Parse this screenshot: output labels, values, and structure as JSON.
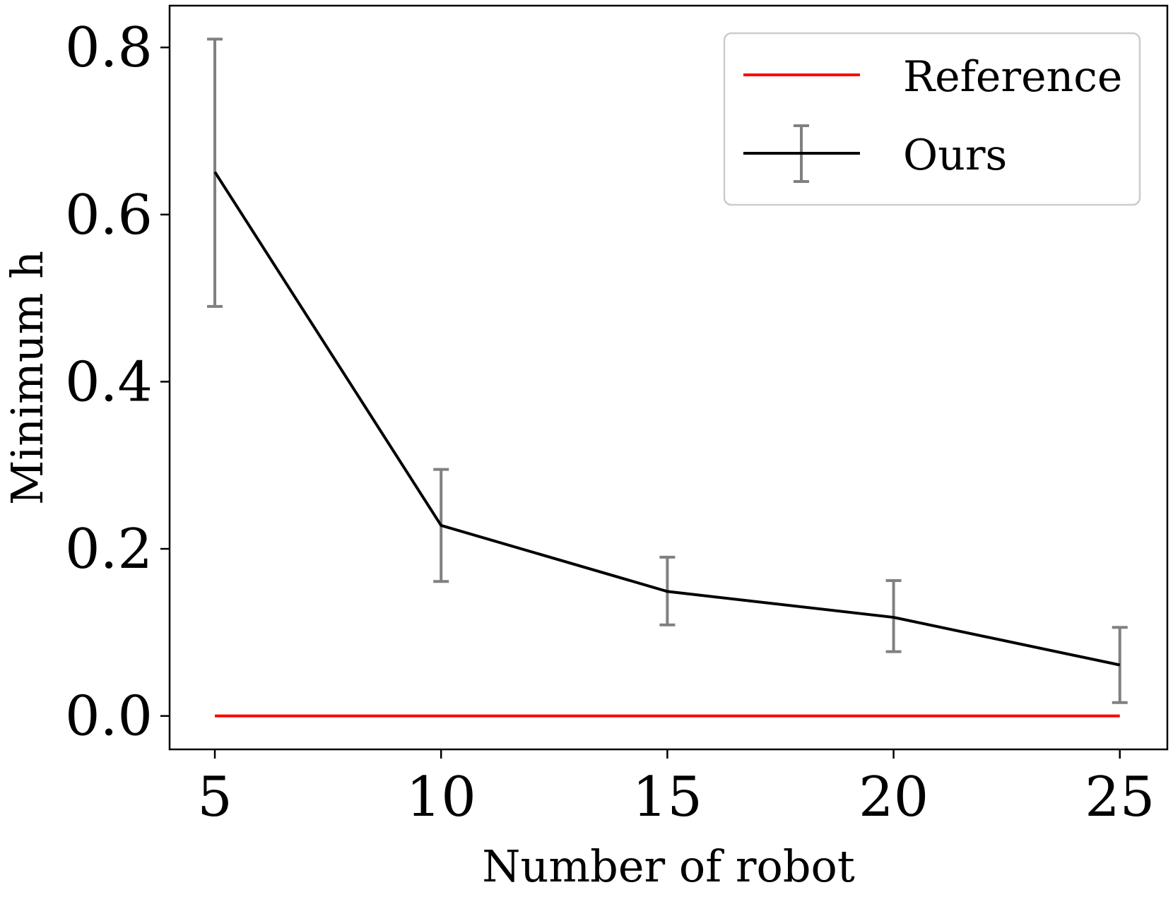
{
  "chart_data": {
    "type": "line",
    "xlabel": "Number of robot",
    "ylabel": "Minimum h",
    "x": [
      5,
      10,
      15,
      20,
      25
    ],
    "x_ticks": [
      "5",
      "10",
      "15",
      "20",
      "25"
    ],
    "y_ticks": [
      "0.0",
      "0.2",
      "0.4",
      "0.6",
      "0.8"
    ],
    "xlim": [
      4,
      26.05
    ],
    "ylim": [
      -0.04,
      0.85
    ],
    "grid": false,
    "legend_position": "top-right",
    "series": [
      {
        "name": "Reference",
        "color": "#ff0000",
        "values": [
          0.0,
          0.0,
          0.0,
          0.0,
          0.0
        ]
      },
      {
        "name": "Ours",
        "color": "#000000",
        "errorbar_color": "#808080",
        "values": [
          0.651,
          0.228,
          0.149,
          0.118,
          0.061
        ],
        "lower": [
          0.49,
          0.161,
          0.109,
          0.077,
          0.016
        ],
        "upper": [
          0.81,
          0.295,
          0.19,
          0.162,
          0.106
        ]
      }
    ]
  }
}
